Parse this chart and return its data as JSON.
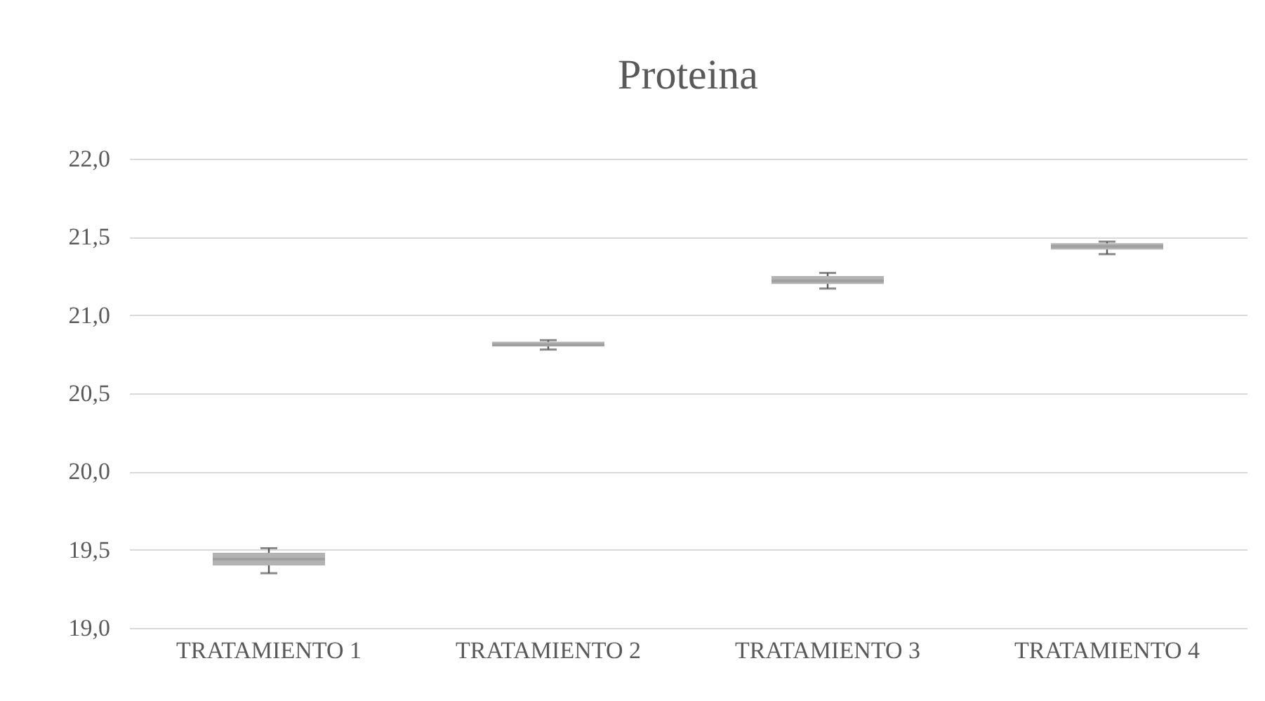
{
  "chart_data": {
    "type": "box",
    "title": "Proteina",
    "categories": [
      "TRATAMIENTO 1",
      "TRATAMIENTO 2",
      "TRATAMIENTO 3",
      "TRATAMIENTO 4"
    ],
    "boxes": [
      {
        "low": 19.35,
        "q1": 19.4,
        "median": 19.44,
        "q3": 19.48,
        "high": 19.51
      },
      {
        "low": 20.78,
        "q1": 20.8,
        "median": 20.81,
        "q3": 20.83,
        "high": 20.84
      },
      {
        "low": 21.17,
        "q1": 21.2,
        "median": 21.22,
        "q3": 21.25,
        "high": 21.27
      },
      {
        "low": 21.39,
        "q1": 21.42,
        "median": 21.44,
        "q3": 21.46,
        "high": 21.47
      }
    ],
    "color": "#b3b3b3",
    "ylim": [
      19,
      22
    ],
    "yticks": [
      {
        "value": 19,
        "label": "19,0"
      },
      {
        "value": 19.5,
        "label": "19,5"
      },
      {
        "value": 20,
        "label": "20,0"
      },
      {
        "value": 20.5,
        "label": "20,5"
      },
      {
        "value": 21,
        "label": "21,0"
      },
      {
        "value": 21.5,
        "label": "21,5"
      },
      {
        "value": 22,
        "label": "22,0"
      }
    ],
    "grid": "y"
  }
}
